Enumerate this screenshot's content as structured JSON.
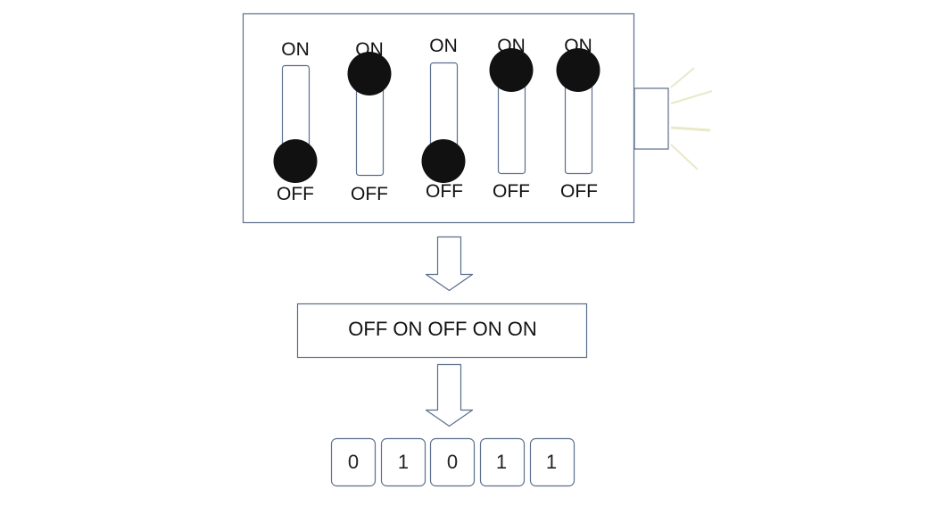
{
  "switches": [
    {
      "on_label": "ON",
      "off_label": "OFF",
      "position": "off"
    },
    {
      "on_label": "ON",
      "off_label": "OFF",
      "position": "on"
    },
    {
      "on_label": "ON",
      "off_label": "OFF",
      "position": "off"
    },
    {
      "on_label": "ON",
      "off_label": "OFF",
      "position": "on"
    },
    {
      "on_label": "ON",
      "off_label": "OFF",
      "position": "on"
    }
  ],
  "summary": "OFF ON OFF ON ON",
  "bits": [
    "0",
    "1",
    "0",
    "1",
    "1"
  ],
  "colors": {
    "outline": "#5b6e8c",
    "knob": "#111111",
    "glow": "#e9e9c8"
  }
}
